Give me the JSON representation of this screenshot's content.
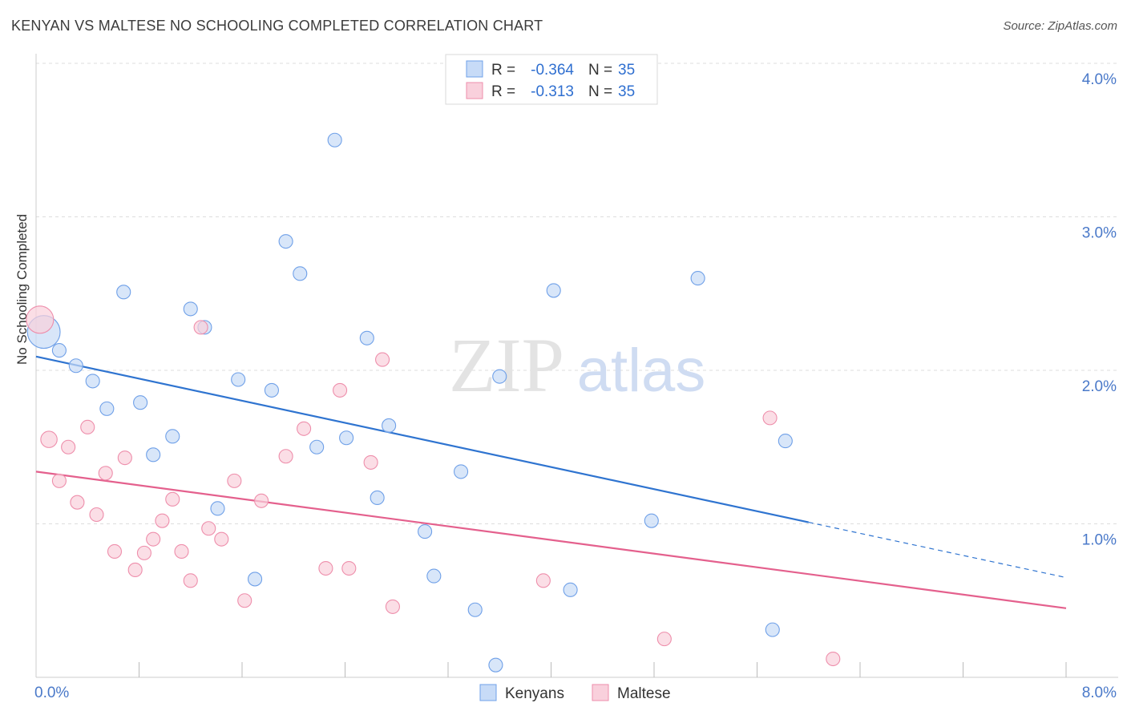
{
  "title": "KENYAN VS MALTESE NO SCHOOLING COMPLETED CORRELATION CHART",
  "source": "Source: ZipAtlas.com",
  "watermark": {
    "part1": "ZIP",
    "part2": "atlas"
  },
  "chart_data": {
    "type": "scatter",
    "ylabel": "No Schooling Completed",
    "xlim": [
      0,
      8
    ],
    "ylim": [
      0,
      4
    ],
    "x_tick_labels": [
      {
        "value": 0,
        "label": "0.0%"
      },
      {
        "value": 8,
        "label": "8.0%"
      }
    ],
    "y_tick_labels": [
      {
        "value": 1,
        "label": "1.0%"
      },
      {
        "value": 2,
        "label": "2.0%"
      },
      {
        "value": 3,
        "label": "3.0%"
      },
      {
        "value": 4,
        "label": "4.0%"
      }
    ],
    "legend": [
      {
        "name": "Kenyans",
        "r_label": "R =",
        "r_value": "-0.364",
        "n_label": "N =",
        "n_value": "35"
      },
      {
        "name": "Maltese",
        "r_label": "R =",
        "r_value": "-0.313",
        "n_label": "N =",
        "n_value": "35"
      }
    ],
    "series": [
      {
        "name": "Kenyans",
        "color": "#6fa0e8",
        "fill": "#c7dbf7",
        "line_color": "#2f74d0",
        "trend": {
          "x0": 0.0,
          "y0": 2.09,
          "x1": 6.0,
          "y1": 1.01,
          "dash_to_x": 8.0,
          "dash_to_y": 0.65
        },
        "points": [
          [
            0.06,
            2.25,
            2.4
          ],
          [
            0.18,
            2.13,
            1
          ],
          [
            0.31,
            2.03,
            1
          ],
          [
            0.44,
            1.93,
            1
          ],
          [
            0.55,
            1.75,
            1
          ],
          [
            0.68,
            2.51,
            1
          ],
          [
            0.81,
            1.79,
            1
          ],
          [
            0.91,
            1.45,
            1
          ],
          [
            1.06,
            1.57,
            1
          ],
          [
            1.2,
            2.4,
            1
          ],
          [
            1.31,
            2.28,
            1
          ],
          [
            1.41,
            1.1,
            1
          ],
          [
            1.57,
            1.94,
            1
          ],
          [
            1.7,
            0.64,
            1
          ],
          [
            1.83,
            1.87,
            1
          ],
          [
            1.94,
            2.84,
            1
          ],
          [
            2.05,
            2.63,
            1
          ],
          [
            2.18,
            1.5,
            1
          ],
          [
            2.32,
            3.5,
            1
          ],
          [
            2.41,
            1.56,
            1
          ],
          [
            2.57,
            2.21,
            1
          ],
          [
            2.65,
            1.17,
            1
          ],
          [
            2.74,
            1.64,
            1
          ],
          [
            3.02,
            0.95,
            1
          ],
          [
            3.09,
            0.66,
            1
          ],
          [
            3.3,
            1.34,
            1
          ],
          [
            3.41,
            0.44,
            1
          ],
          [
            3.57,
            0.08,
            1
          ],
          [
            3.6,
            1.96,
            1
          ],
          [
            4.02,
            2.52,
            1
          ],
          [
            4.15,
            0.57,
            1
          ],
          [
            4.78,
            1.02,
            1
          ],
          [
            5.14,
            2.6,
            1
          ],
          [
            5.82,
            1.54,
            1
          ],
          [
            5.72,
            0.31,
            1
          ]
        ]
      },
      {
        "name": "Maltese",
        "color": "#ee8eab",
        "fill": "#f9d0dc",
        "line_color": "#e4608d",
        "trend": {
          "x0": 0.0,
          "y0": 1.34,
          "x1": 8.0,
          "y1": 0.45
        },
        "points": [
          [
            0.03,
            2.33,
            2.0
          ],
          [
            0.1,
            1.55,
            1.2
          ],
          [
            0.18,
            1.28,
            1
          ],
          [
            0.25,
            1.5,
            1
          ],
          [
            0.32,
            1.14,
            1
          ],
          [
            0.4,
            1.63,
            1
          ],
          [
            0.47,
            1.06,
            1
          ],
          [
            0.54,
            1.33,
            1
          ],
          [
            0.61,
            0.82,
            1
          ],
          [
            0.69,
            1.43,
            1
          ],
          [
            0.77,
            0.7,
            1
          ],
          [
            0.84,
            0.81,
            1
          ],
          [
            0.91,
            0.9,
            1
          ],
          [
            0.98,
            1.02,
            1
          ],
          [
            1.06,
            1.16,
            1
          ],
          [
            1.13,
            0.82,
            1
          ],
          [
            1.2,
            0.63,
            1
          ],
          [
            1.28,
            2.28,
            1
          ],
          [
            1.34,
            0.97,
            1
          ],
          [
            1.44,
            0.9,
            1
          ],
          [
            1.54,
            1.28,
            1
          ],
          [
            1.62,
            0.5,
            1
          ],
          [
            1.75,
            1.15,
            1
          ],
          [
            1.94,
            1.44,
            1
          ],
          [
            2.08,
            1.62,
            1
          ],
          [
            2.25,
            0.71,
            1
          ],
          [
            2.36,
            1.87,
            1
          ],
          [
            2.43,
            0.71,
            1
          ],
          [
            2.6,
            1.4,
            1
          ],
          [
            2.69,
            2.07,
            1
          ],
          [
            2.77,
            0.46,
            1
          ],
          [
            3.94,
            0.63,
            1
          ],
          [
            4.88,
            0.25,
            1
          ],
          [
            5.7,
            1.69,
            1
          ],
          [
            6.19,
            0.12,
            1
          ]
        ]
      }
    ]
  }
}
